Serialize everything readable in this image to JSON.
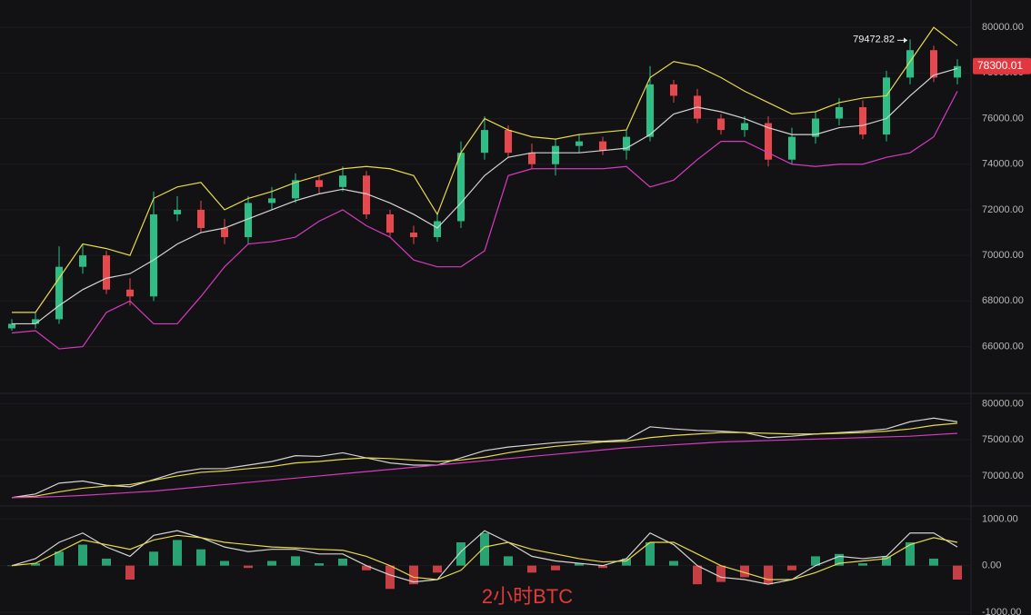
{
  "watermark": "2小时BTC",
  "chart_data": [
    {
      "type": "candlestick",
      "ylim": [
        63950,
        81200
      ],
      "yticks": [
        {
          "value": 80000,
          "label": "80000.00"
        },
        {
          "value": 78000,
          "label": "78000.00"
        },
        {
          "value": 76000,
          "label": "76000.00"
        },
        {
          "value": 74000,
          "label": "74000.00"
        },
        {
          "value": 72000,
          "label": "72000.00"
        },
        {
          "value": 70000,
          "label": "70000.00"
        },
        {
          "value": 68000,
          "label": "68000.00"
        },
        {
          "value": 66000,
          "label": "66000.00"
        }
      ],
      "up_color": "#2ebd85",
      "down_color": "#e5484d",
      "open": [
        66800,
        67000,
        67200,
        69500,
        70000,
        68500,
        68200,
        71800,
        72000,
        71200,
        70800,
        72300,
        72500,
        73300,
        73000,
        73500,
        71800,
        71000,
        70800,
        71500,
        74500,
        75500,
        74500,
        74000,
        74800,
        75000,
        74600,
        75200,
        77500,
        77000,
        76000,
        75500,
        75800,
        74200,
        75200,
        76000,
        76500,
        75300,
        77800,
        79000,
        77800
      ],
      "high": [
        67200,
        67500,
        70400,
        70500,
        70200,
        69000,
        72800,
        72600,
        72400,
        71600,
        72600,
        73000,
        73600,
        73500,
        73900,
        73700,
        72000,
        71300,
        71800,
        75000,
        76100,
        75700,
        74900,
        75100,
        75300,
        75200,
        75500,
        78300,
        77700,
        77300,
        76200,
        76100,
        76100,
        75600,
        76300,
        76900,
        76800,
        78100,
        79472.82,
        79200,
        78600
      ],
      "low": [
        66700,
        66800,
        67000,
        69200,
        68300,
        67800,
        68000,
        71500,
        71000,
        70500,
        70500,
        72000,
        72300,
        72700,
        72800,
        71600,
        70800,
        70500,
        70600,
        71200,
        74200,
        74300,
        73800,
        73500,
        74500,
        74400,
        74200,
        75000,
        76700,
        75800,
        75300,
        75200,
        73900,
        74000,
        74900,
        75700,
        75100,
        75000,
        77500,
        77600,
        77500
      ],
      "close": [
        67000,
        67200,
        69500,
        70000,
        68500,
        68200,
        71800,
        72000,
        71200,
        70800,
        72300,
        72500,
        73300,
        73000,
        73500,
        71800,
        71000,
        70800,
        71500,
        74500,
        75500,
        74500,
        74000,
        74800,
        75000,
        74600,
        75200,
        77500,
        77000,
        76000,
        75500,
        75800,
        74200,
        75200,
        76000,
        76500,
        75300,
        77800,
        79000,
        77800,
        78300
      ],
      "overlays": [
        {
          "color": "#e8d94a",
          "values": [
            67500,
            67500,
            69000,
            70500,
            70300,
            70000,
            72500,
            73000,
            73200,
            72000,
            72500,
            72800,
            73200,
            73500,
            73800,
            73900,
            73800,
            73500,
            71800,
            74500,
            76000,
            75500,
            75200,
            75100,
            75300,
            75400,
            75500,
            77800,
            78500,
            78300,
            77800,
            77200,
            76700,
            76200,
            76300,
            76700,
            76900,
            77000,
            78500,
            80000,
            79200
          ]
        },
        {
          "color": "#d4d4d4",
          "values": [
            67000,
            67000,
            67800,
            68500,
            69000,
            69200,
            69800,
            70500,
            71000,
            71200,
            71600,
            72000,
            72400,
            72700,
            72900,
            72700,
            72300,
            71800,
            71200,
            72300,
            73500,
            74300,
            74500,
            74500,
            74500,
            74600,
            74700,
            75300,
            76200,
            76500,
            76300,
            76000,
            75600,
            75300,
            75300,
            75600,
            75700,
            76000,
            77000,
            77900,
            78200
          ]
        },
        {
          "color": "#d63ac0",
          "values": [
            66600,
            66700,
            65900,
            66000,
            67500,
            68000,
            67000,
            67000,
            68200,
            69500,
            70500,
            70600,
            70800,
            71500,
            72000,
            71300,
            70800,
            69800,
            69500,
            69500,
            70200,
            73500,
            73800,
            73800,
            73800,
            73800,
            73900,
            73000,
            73300,
            74200,
            75000,
            75000,
            74500,
            74000,
            73900,
            74000,
            74000,
            74300,
            74500,
            75200,
            77200
          ]
        }
      ],
      "annotation": 79472.82,
      "last_price": 78300.01,
      "last_price_color": "#e0383e"
    },
    {
      "type": "line",
      "ylim": [
        65840,
        81430
      ],
      "yticks": [
        {
          "value": 80000,
          "label": "80000.00"
        },
        {
          "value": 75000,
          "label": "75000.00"
        },
        {
          "value": 70000,
          "label": "70000.00"
        }
      ],
      "series": [
        {
          "color": "#d4d4d4",
          "values": [
            67000,
            67500,
            69000,
            69300,
            68700,
            68500,
            69500,
            70500,
            71000,
            71000,
            71500,
            72000,
            72800,
            72700,
            73200,
            72500,
            71800,
            71500,
            71500,
            72500,
            73500,
            74000,
            74300,
            74600,
            74800,
            74800,
            75000,
            76800,
            76500,
            76300,
            76200,
            76000,
            75300,
            75500,
            75800,
            76000,
            76200,
            76500,
            77500,
            78000,
            77500
          ]
        },
        {
          "color": "#e8d94a",
          "values": [
            67000,
            67200,
            67800,
            68300,
            68600,
            68800,
            69400,
            70000,
            70500,
            70700,
            71000,
            71300,
            71800,
            72000,
            72300,
            72500,
            72400,
            72200,
            72000,
            72200,
            72600,
            73200,
            73700,
            74100,
            74400,
            74700,
            74800,
            75300,
            75600,
            75800,
            76000,
            76000,
            75900,
            75800,
            75800,
            75900,
            76000,
            76200,
            76500,
            77000,
            77300
          ]
        },
        {
          "color": "#d63ac0",
          "values": [
            67000,
            67050,
            67150,
            67300,
            67500,
            67700,
            67900,
            68200,
            68500,
            68800,
            69100,
            69400,
            69700,
            70000,
            70300,
            70600,
            70900,
            71200,
            71500,
            71800,
            72100,
            72400,
            72700,
            73000,
            73300,
            73600,
            73900,
            74100,
            74300,
            74500,
            74700,
            74800,
            74900,
            75000,
            75100,
            75200,
            75300,
            75400,
            75500,
            75700,
            75900
          ]
        }
      ]
    },
    {
      "type": "macd",
      "ylim": [
        -1060,
        1280
      ],
      "yticks": [
        {
          "value": 1000,
          "label": "1000.00"
        },
        {
          "value": 0,
          "label": "0.00"
        },
        {
          "value": -1000,
          "label": "-1000.00"
        }
      ],
      "up_color": "#2ebd85",
      "down_color": "#e5484d",
      "values": [
        0,
        50,
        300,
        450,
        150,
        -300,
        300,
        550,
        350,
        100,
        -50,
        100,
        200,
        50,
        150,
        -100,
        -500,
        -400,
        -150,
        500,
        700,
        200,
        -150,
        -100,
        50,
        -50,
        150,
        500,
        100,
        -400,
        -350,
        -250,
        -400,
        -100,
        200,
        250,
        50,
        200,
        500,
        150,
        -300
      ],
      "series": [
        {
          "color": "#d4d4d4",
          "values": [
            0,
            150,
            500,
            700,
            400,
            200,
            650,
            750,
            600,
            400,
            300,
            350,
            350,
            250,
            250,
            0,
            -200,
            -350,
            -300,
            300,
            750,
            500,
            200,
            100,
            50,
            0,
            150,
            700,
            450,
            0,
            -250,
            -300,
            -400,
            -300,
            0,
            200,
            150,
            200,
            700,
            700,
            400
          ]
        },
        {
          "color": "#e8d94a",
          "values": [
            0,
            50,
            300,
            550,
            450,
            350,
            550,
            650,
            600,
            500,
            450,
            400,
            380,
            350,
            330,
            200,
            0,
            -250,
            -300,
            -100,
            400,
            500,
            350,
            250,
            150,
            80,
            100,
            500,
            500,
            250,
            0,
            -150,
            -300,
            -300,
            -150,
            50,
            100,
            150,
            450,
            600,
            500
          ]
        }
      ]
    }
  ]
}
